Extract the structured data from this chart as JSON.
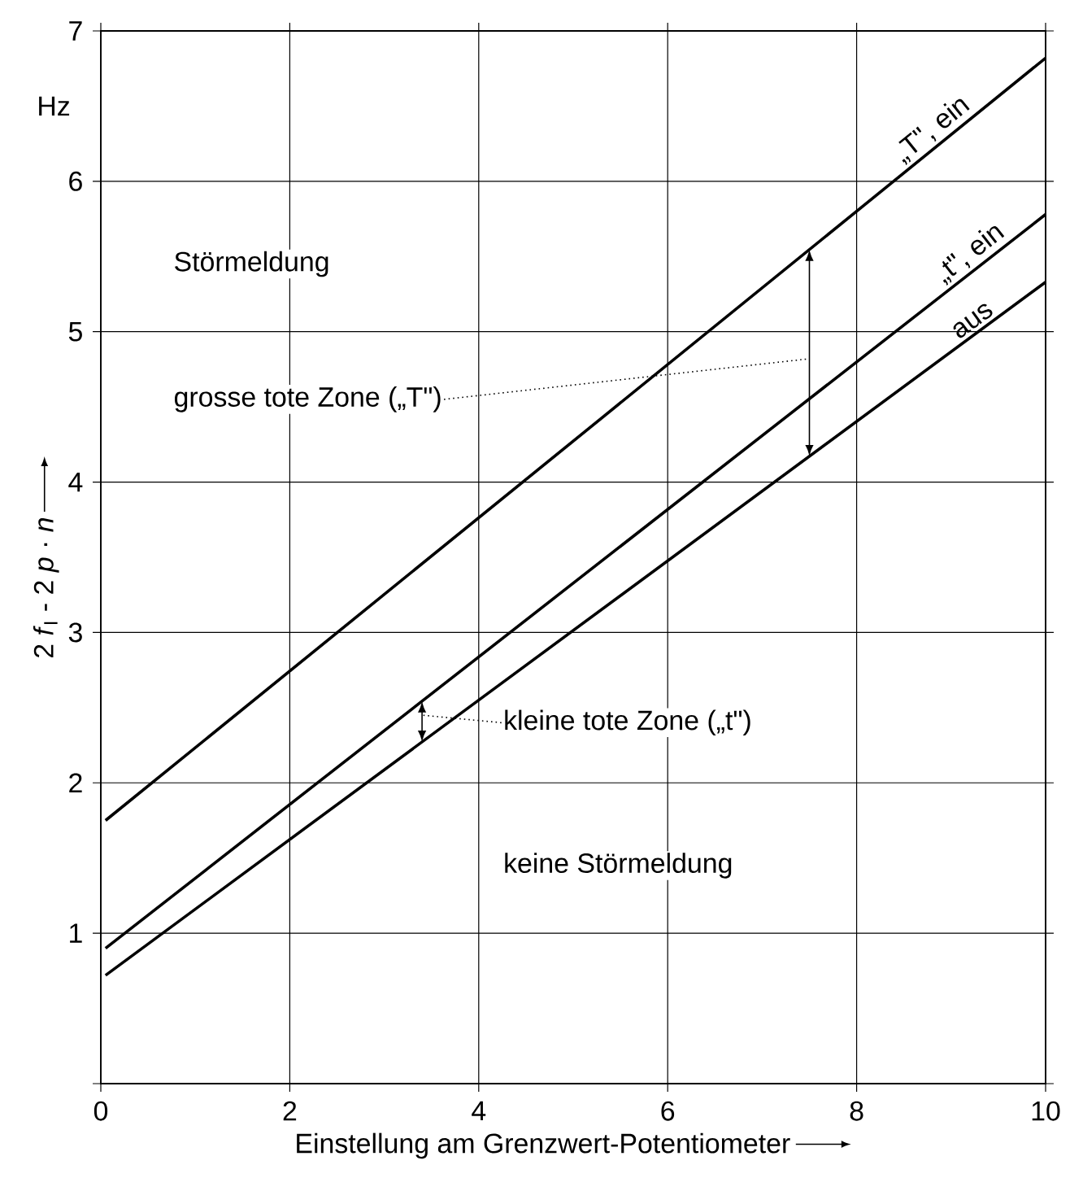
{
  "chart_data": {
    "type": "line",
    "xlabel": "Einstellung am Grenzwert-Potentiometer",
    "ylabel": "2 *f*$_{I}$ - 2 *p* · *n*",
    "series": [
      {
        "name": "„T\", ein",
        "color": "#000000",
        "values": [
          1.75,
          6.82
        ]
      },
      {
        "name": "„t\", ein",
        "color": "#000000",
        "values": [
          0.9,
          5.78
        ]
      },
      {
        "name": "aus",
        "color": "#000000",
        "values": [
          0.72,
          5.33
        ]
      }
    ],
    "x": [
      0.05,
      10
    ],
    "annotations": [
      "Störmeldung",
      "keine Störmeldung",
      "Hz",
      "grosse tote Zone („T\")",
      "kleine tote Zone („t\")"
    ],
    "xlim": [
      0,
      10
    ],
    "ylim": [
      0,
      7
    ],
    "xticks": [
      0,
      2,
      4,
      6,
      8,
      10
    ],
    "yticks": [
      {
        "value": 0,
        "label": null
      },
      1,
      2,
      3,
      4,
      5,
      6,
      7
    ],
    "grid": true,
    "legend": "right",
    "marker": "none",
    "line_style": "solid"
  }
}
